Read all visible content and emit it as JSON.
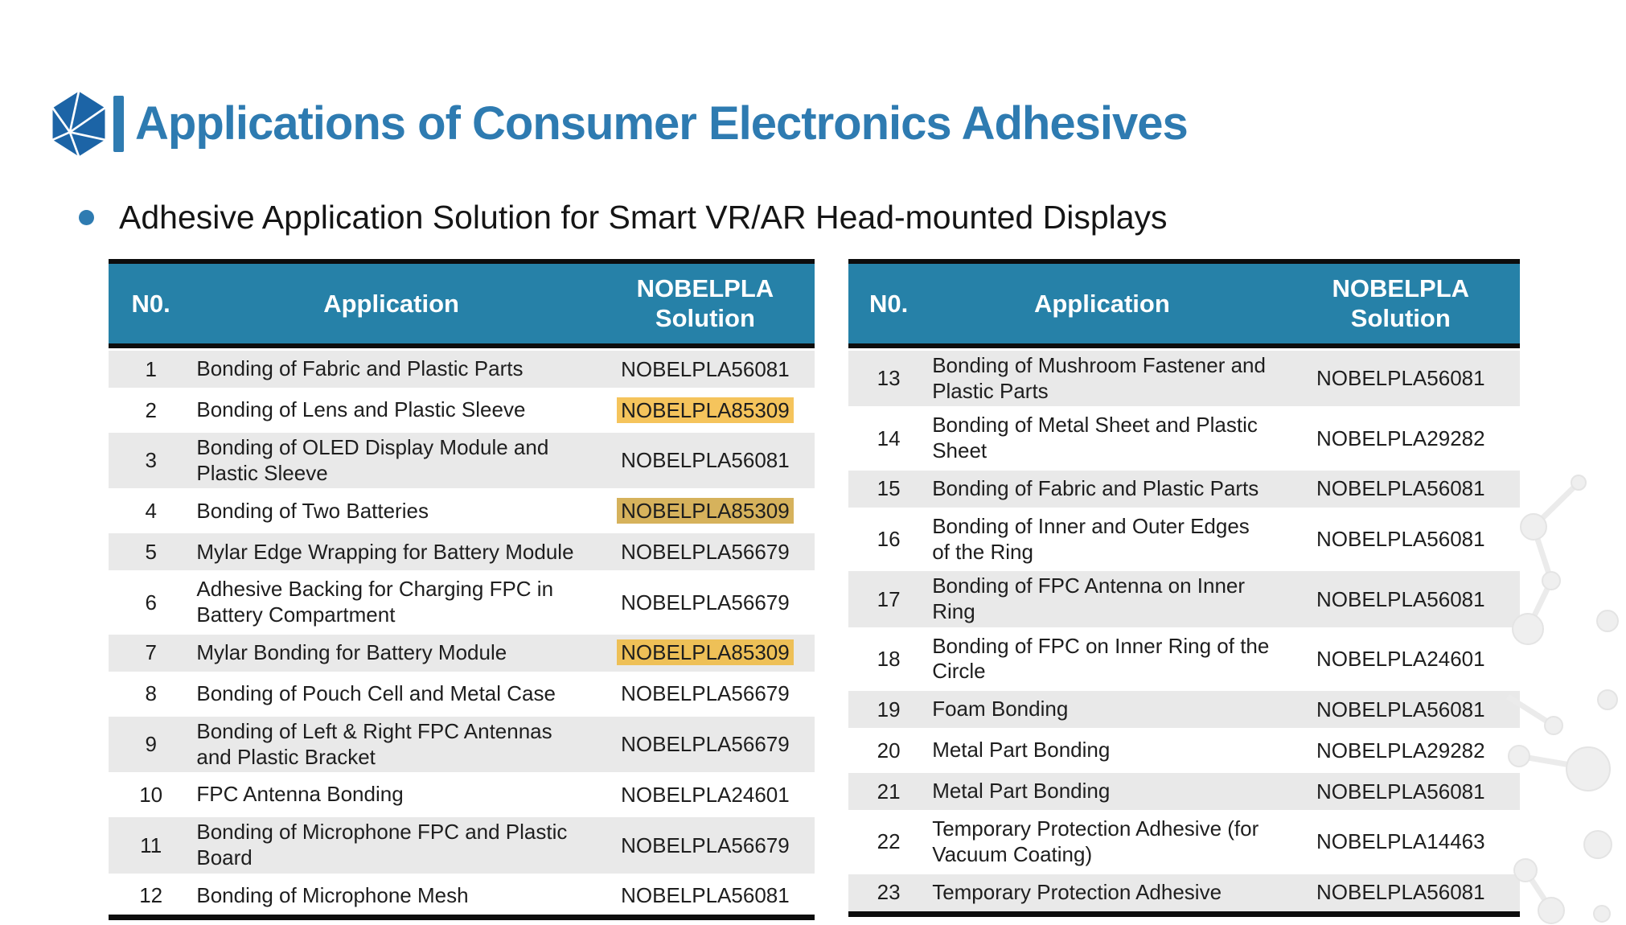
{
  "header": {
    "title": "Applications of Consumer Electronics Adhesives",
    "subtitle": "Adhesive Application Solution for Smart VR/AR Head-mounted Displays"
  },
  "icons": {
    "logo": "hexagon-facet-logo",
    "bullet": "circle-bullet",
    "watermark": "molecule-watermark"
  },
  "colors": {
    "accent_blue": "#2E7BB1",
    "logo_blue": "#1C64A6",
    "header_teal": "#2681A8",
    "row_gray": "#E9E9E9",
    "row_white": "#FFFFFF",
    "highlight_yellow": "#F5C45C",
    "highlight_yellow_dull": "#D6B25C",
    "border_black": "#0D0D0D",
    "text_dark": "#1E1E1E"
  },
  "table_headers": {
    "no": "N0.",
    "application": "Application",
    "solution_line1": "NOBELPLA",
    "solution_line2": "Solution"
  },
  "tables": [
    {
      "rows": [
        {
          "no": "1",
          "application": "Bonding of Fabric and Plastic Parts",
          "solution": "NOBELPLA56081",
          "shade": "gray",
          "highlight": null
        },
        {
          "no": "2",
          "application": "Bonding of Lens and Plastic Sleeve",
          "solution": "NOBELPLA85309",
          "shade": "white",
          "highlight": "#F5C45C"
        },
        {
          "no": "3",
          "application": "Bonding of OLED Display Module and Plastic Sleeve",
          "solution": "NOBELPLA56081",
          "shade": "gray",
          "highlight": null
        },
        {
          "no": "4",
          "application": "Bonding of Two Batteries",
          "solution": "NOBELPLA85309",
          "shade": "white",
          "highlight": "#D6B25C"
        },
        {
          "no": "5",
          "application": "Mylar Edge Wrapping for Battery Module",
          "solution": "NOBELPLA56679",
          "shade": "gray",
          "highlight": null
        },
        {
          "no": "6",
          "application": "Adhesive Backing for Charging FPC in Battery Compartment",
          "solution": "NOBELPLA56679",
          "shade": "white",
          "highlight": null
        },
        {
          "no": "7",
          "application": "Mylar Bonding for Battery Module",
          "solution": "NOBELPLA85309",
          "shade": "gray",
          "highlight": "#EEC057"
        },
        {
          "no": "8",
          "application": "Bonding of Pouch Cell and Metal Case",
          "solution": "NOBELPLA56679",
          "shade": "white",
          "highlight": null
        },
        {
          "no": "9",
          "application": "Bonding of Left & Right FPC Antennas and Plastic Bracket",
          "solution": "NOBELPLA56679",
          "shade": "gray",
          "highlight": null
        },
        {
          "no": "10",
          "application": "FPC Antenna Bonding",
          "solution": "NOBELPLA24601",
          "shade": "white",
          "highlight": null
        },
        {
          "no": "11",
          "application": "Bonding of Microphone FPC and Plastic Board",
          "solution": "NOBELPLA56679",
          "shade": "gray",
          "highlight": null
        },
        {
          "no": "12",
          "application": "Bonding of Microphone Mesh",
          "solution": "NOBELPLA56081",
          "shade": "white",
          "highlight": null
        }
      ]
    },
    {
      "rows": [
        {
          "no": "13",
          "application": "Bonding of Mushroom Fastener and Plastic Parts",
          "solution": "NOBELPLA56081",
          "shade": "gray",
          "highlight": null
        },
        {
          "no": "14",
          "application": "Bonding of Metal Sheet and Plastic Sheet",
          "solution": "NOBELPLA29282",
          "shade": "white",
          "highlight": null
        },
        {
          "no": "15",
          "application": "Bonding of Fabric and Plastic Parts",
          "solution": "NOBELPLA56081",
          "shade": "gray",
          "highlight": null
        },
        {
          "no": "16",
          "application": "Bonding of Inner and Outer Edges of the Ring",
          "solution": "NOBELPLA56081",
          "shade": "white",
          "highlight": null
        },
        {
          "no": "17",
          "application": "Bonding of FPC Antenna on Inner Ring",
          "solution": "NOBELPLA56081",
          "shade": "gray",
          "highlight": null
        },
        {
          "no": "18",
          "application": "Bonding of FPC on Inner Ring of the Circle",
          "solution": "NOBELPLA24601",
          "shade": "white",
          "highlight": null
        },
        {
          "no": "19",
          "application": "Foam Bonding",
          "solution": "NOBELPLA56081",
          "shade": "gray",
          "highlight": null
        },
        {
          "no": "20",
          "application": "Metal Part Bonding",
          "solution": "NOBELPLA29282",
          "shade": "white",
          "highlight": null
        },
        {
          "no": "21",
          "application": "Metal Part Bonding",
          "solution": "NOBELPLA56081",
          "shade": "gray",
          "highlight": null
        },
        {
          "no": "22",
          "application": "Temporary Protection Adhesive (for Vacuum Coating)",
          "solution": "NOBELPLA14463",
          "shade": "white",
          "highlight": null
        },
        {
          "no": "23",
          "application": "Temporary Protection Adhesive",
          "solution": "NOBELPLA56081",
          "shade": "gray",
          "highlight": null
        }
      ]
    }
  ]
}
